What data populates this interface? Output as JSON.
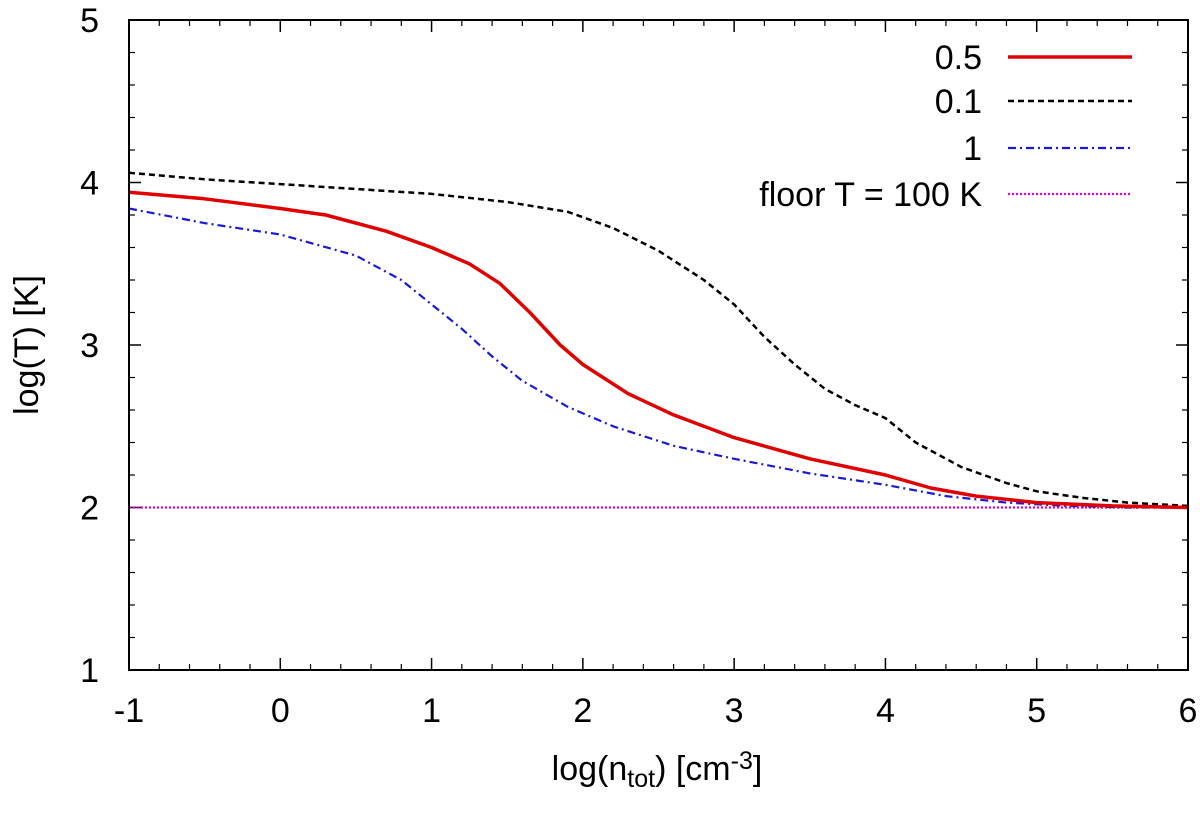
{
  "chart_data": {
    "type": "line",
    "xlabel": "log(n_tot) [cm^-3]",
    "xlabel_parts": {
      "prefix": "log(n",
      "sub": "tot",
      "mid": ") [cm",
      "sup": "-3",
      "suffix": "]"
    },
    "ylabel": "log(T) [K]",
    "xlim": [
      -1,
      6
    ],
    "ylim": [
      1,
      5
    ],
    "xticks": [
      -1,
      0,
      1,
      2,
      3,
      4,
      5,
      6
    ],
    "yticks": [
      1,
      2,
      3,
      4,
      5
    ],
    "legend_position": "top-right",
    "series": [
      {
        "name": "0.5",
        "color": "#e00000",
        "style": "solid",
        "x": [
          -1,
          -0.5,
          0,
          0.3,
          0.7,
          1.0,
          1.25,
          1.45,
          1.65,
          1.85,
          2.0,
          2.3,
          2.6,
          3.0,
          3.5,
          4.0,
          4.3,
          4.6,
          5.0,
          5.5,
          6.0
        ],
        "y": [
          3.94,
          3.9,
          3.84,
          3.8,
          3.7,
          3.6,
          3.5,
          3.38,
          3.2,
          3.0,
          2.88,
          2.7,
          2.57,
          2.43,
          2.3,
          2.2,
          2.12,
          2.07,
          2.03,
          2.01,
          2.0
        ]
      },
      {
        "name": "0.1",
        "color": "#000000",
        "style": "dashed",
        "x": [
          -1,
          -0.5,
          0,
          0.5,
          1.0,
          1.5,
          1.9,
          2.2,
          2.5,
          2.8,
          3.0,
          3.2,
          3.4,
          3.6,
          3.8,
          4.0,
          4.2,
          4.5,
          4.8,
          5.0,
          5.3,
          5.6,
          6.0
        ],
        "y": [
          4.06,
          4.02,
          3.99,
          3.96,
          3.93,
          3.88,
          3.82,
          3.72,
          3.58,
          3.4,
          3.25,
          3.05,
          2.88,
          2.73,
          2.63,
          2.55,
          2.4,
          2.25,
          2.15,
          2.1,
          2.06,
          2.03,
          2.01
        ]
      },
      {
        "name": "1",
        "color": "#1a1ad6",
        "style": "dashdot",
        "x": [
          -1,
          -0.5,
          0,
          0.5,
          0.8,
          1.0,
          1.2,
          1.4,
          1.6,
          1.9,
          2.2,
          2.6,
          3.0,
          3.5,
          4.0,
          4.4,
          4.8,
          5.2,
          5.6,
          6.0
        ],
        "y": [
          3.84,
          3.75,
          3.68,
          3.55,
          3.4,
          3.25,
          3.1,
          2.93,
          2.78,
          2.62,
          2.5,
          2.38,
          2.3,
          2.21,
          2.14,
          2.07,
          2.03,
          2.01,
          2.0,
          2.0
        ]
      },
      {
        "name": "floor T = 100 K",
        "color": "#e000e0",
        "style": "dotted",
        "x": [
          -1,
          6
        ],
        "y": [
          2,
          2
        ]
      }
    ]
  }
}
